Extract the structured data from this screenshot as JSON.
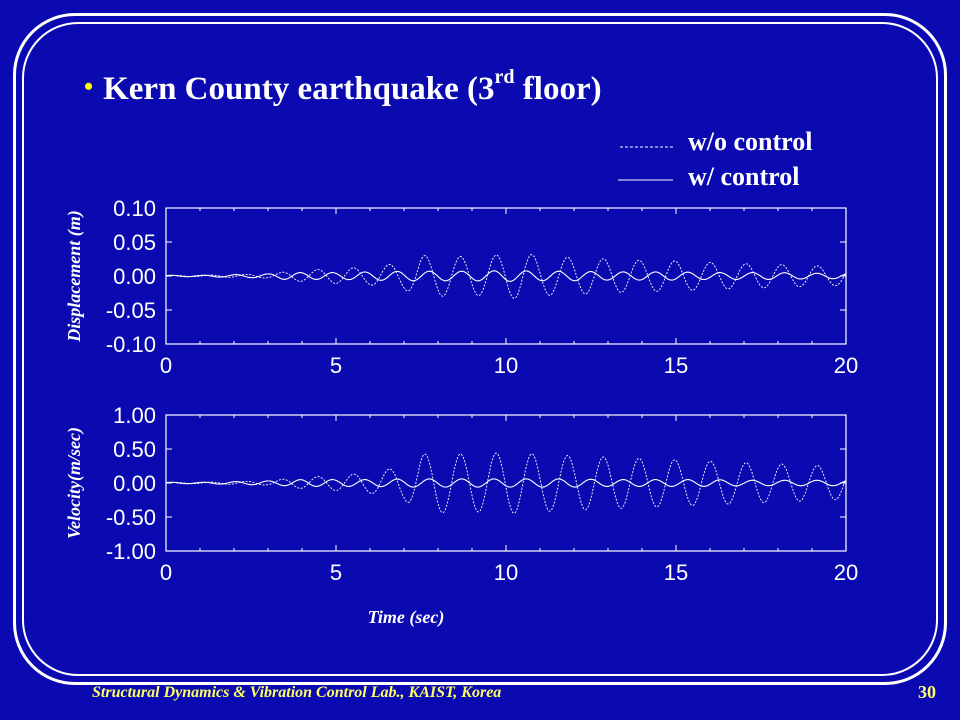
{
  "slide": {
    "bullet": "•",
    "title_main": "Kern County earthquake (3",
    "title_sup": "rd",
    "title_end": " floor)",
    "footer": "Structural Dynamics & Vibration Control Lab., KAIST, Korea",
    "page_number": "30"
  },
  "legend": {
    "without": "w/o control",
    "with": "w/   control"
  },
  "chart_data": [
    {
      "type": "line",
      "ylabel": "Displacement (m)",
      "xlabel": "",
      "xlim": [
        0,
        20
      ],
      "ylim": [
        -0.1,
        0.1
      ],
      "xticks": [
        "0",
        "5",
        "10",
        "15",
        "20"
      ],
      "yticks": [
        "0.10",
        "0.05",
        "0.00",
        "-0.05",
        "-0.10"
      ],
      "series": [
        {
          "name": "w/o control",
          "style": "dashed",
          "x": [
            0,
            1,
            2,
            3,
            3.5,
            4,
            5,
            6,
            7,
            7.5,
            8,
            9,
            10,
            10.5,
            11,
            12,
            13,
            14,
            15,
            16,
            17,
            18,
            19,
            20
          ],
          "amp": [
            0.001,
            0.001,
            0.002,
            0.003,
            0.006,
            0.008,
            0.011,
            0.013,
            0.02,
            0.03,
            0.03,
            0.028,
            0.032,
            0.034,
            0.029,
            0.027,
            0.025,
            0.023,
            0.022,
            0.02,
            0.018,
            0.017,
            0.015,
            0.014
          ]
        },
        {
          "name": "w/ control",
          "style": "solid",
          "x": [
            0,
            1,
            2,
            3,
            3.5,
            4,
            5,
            6,
            7,
            8,
            9,
            10,
            11,
            12,
            13,
            14,
            15,
            16,
            17,
            18,
            19,
            20
          ],
          "amp": [
            0.001,
            0.001,
            0.002,
            0.003,
            0.005,
            0.005,
            0.005,
            0.006,
            0.007,
            0.007,
            0.007,
            0.008,
            0.007,
            0.007,
            0.006,
            0.006,
            0.006,
            0.005,
            0.005,
            0.005,
            0.004,
            0.004
          ]
        }
      ]
    },
    {
      "type": "line",
      "ylabel": "Velocity(m/sec)",
      "xlabel": "Time (sec)",
      "xlim": [
        0,
        20
      ],
      "ylim": [
        -1.0,
        1.0
      ],
      "xticks": [
        "0",
        "5",
        "10",
        "15",
        "20"
      ],
      "yticks": [
        "1.00",
        "0.50",
        "0.00",
        "-0.50",
        "-1.00"
      ],
      "series": [
        {
          "name": "w/o control",
          "style": "dashed",
          "x": [
            0,
            1,
            2,
            3,
            3.5,
            4,
            5,
            6,
            7,
            7.5,
            8,
            9,
            10,
            10.5,
            11,
            12,
            13,
            14,
            15,
            16,
            17,
            18,
            19,
            20
          ],
          "amp": [
            0.01,
            0.01,
            0.02,
            0.03,
            0.06,
            0.08,
            0.11,
            0.15,
            0.25,
            0.42,
            0.44,
            0.42,
            0.45,
            0.44,
            0.42,
            0.4,
            0.38,
            0.36,
            0.34,
            0.32,
            0.3,
            0.28,
            0.26,
            0.24
          ]
        },
        {
          "name": "w/ control",
          "style": "solid",
          "x": [
            0,
            1,
            2,
            3,
            3.5,
            4,
            5,
            6,
            7,
            8,
            9,
            10,
            11,
            12,
            13,
            14,
            15,
            16,
            17,
            18,
            19,
            20
          ],
          "amp": [
            0.01,
            0.01,
            0.02,
            0.03,
            0.04,
            0.05,
            0.05,
            0.05,
            0.06,
            0.06,
            0.06,
            0.06,
            0.06,
            0.06,
            0.05,
            0.05,
            0.05,
            0.05,
            0.04,
            0.04,
            0.04,
            0.04
          ]
        }
      ]
    }
  ]
}
